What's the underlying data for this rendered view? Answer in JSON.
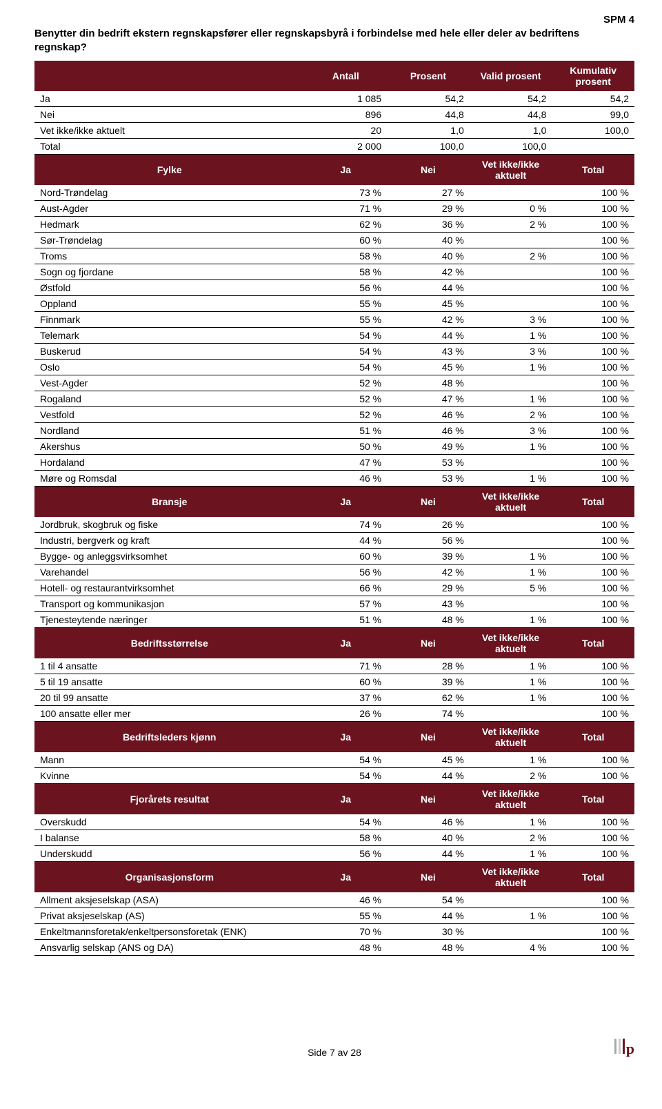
{
  "spm": "SPM 4",
  "question": "Benytter din bedrift ekstern regnskapsfører eller regnskapsbyrå i forbindelse med hele eller deler av bedriftens regnskap?",
  "colors": {
    "header_bg": "#6b1420",
    "header_fg": "#ffffff",
    "row_border": "#000000"
  },
  "summary": {
    "headers": [
      "Antall",
      "Prosent",
      "Valid prosent",
      "Kumulativ prosent"
    ],
    "rows": [
      {
        "label": "Ja",
        "cells": [
          "1 085",
          "54,2",
          "54,2",
          "54,2"
        ]
      },
      {
        "label": "Nei",
        "cells": [
          "896",
          "44,8",
          "44,8",
          "99,0"
        ]
      },
      {
        "label": "Vet ikke/ikke aktuelt",
        "cells": [
          "20",
          "1,0",
          "1,0",
          "100,0"
        ]
      },
      {
        "label": "Total",
        "cells": [
          "2 000",
          "100,0",
          "100,0",
          ""
        ]
      }
    ]
  },
  "subheaders": [
    "Ja",
    "Nei",
    "Vet ikke/ikke aktuelt",
    "Total"
  ],
  "sections": [
    {
      "title": "Fylke",
      "rows": [
        {
          "label": "Nord-Trøndelag",
          "cells": [
            "73 %",
            "27 %",
            "",
            "100 %"
          ]
        },
        {
          "label": "Aust-Agder",
          "cells": [
            "71 %",
            "29 %",
            "0 %",
            "100 %"
          ]
        },
        {
          "label": "Hedmark",
          "cells": [
            "62 %",
            "36 %",
            "2 %",
            "100 %"
          ]
        },
        {
          "label": "Sør-Trøndelag",
          "cells": [
            "60 %",
            "40 %",
            "",
            "100 %"
          ]
        },
        {
          "label": "Troms",
          "cells": [
            "58 %",
            "40 %",
            "2 %",
            "100 %"
          ]
        },
        {
          "label": "Sogn og fjordane",
          "cells": [
            "58 %",
            "42 %",
            "",
            "100 %"
          ]
        },
        {
          "label": "Østfold",
          "cells": [
            "56 %",
            "44 %",
            "",
            "100 %"
          ]
        },
        {
          "label": "Oppland",
          "cells": [
            "55 %",
            "45 %",
            "",
            "100 %"
          ]
        },
        {
          "label": "Finnmark",
          "cells": [
            "55 %",
            "42 %",
            "3 %",
            "100 %"
          ]
        },
        {
          "label": "Telemark",
          "cells": [
            "54 %",
            "44 %",
            "1 %",
            "100 %"
          ]
        },
        {
          "label": "Buskerud",
          "cells": [
            "54 %",
            "43 %",
            "3 %",
            "100 %"
          ]
        },
        {
          "label": "Oslo",
          "cells": [
            "54 %",
            "45 %",
            "1 %",
            "100 %"
          ]
        },
        {
          "label": "Vest-Agder",
          "cells": [
            "52 %",
            "48 %",
            "",
            "100 %"
          ]
        },
        {
          "label": "Rogaland",
          "cells": [
            "52 %",
            "47 %",
            "1 %",
            "100 %"
          ]
        },
        {
          "label": "Vestfold",
          "cells": [
            "52 %",
            "46 %",
            "2 %",
            "100 %"
          ]
        },
        {
          "label": "Nordland",
          "cells": [
            "51 %",
            "46 %",
            "3 %",
            "100 %"
          ]
        },
        {
          "label": "Akershus",
          "cells": [
            "50 %",
            "49 %",
            "1 %",
            "100 %"
          ]
        },
        {
          "label": "Hordaland",
          "cells": [
            "47 %",
            "53 %",
            "",
            "100 %"
          ]
        },
        {
          "label": "Møre og Romsdal",
          "cells": [
            "46 %",
            "53 %",
            "1 %",
            "100 %"
          ]
        }
      ]
    },
    {
      "title": "Bransje",
      "rows": [
        {
          "label": "Jordbruk, skogbruk og fiske",
          "cells": [
            "74 %",
            "26 %",
            "",
            "100 %"
          ]
        },
        {
          "label": "Industri, bergverk og kraft",
          "cells": [
            "44 %",
            "56 %",
            "",
            "100 %"
          ]
        },
        {
          "label": "Bygge- og anleggsvirksomhet",
          "cells": [
            "60 %",
            "39 %",
            "1 %",
            "100 %"
          ]
        },
        {
          "label": "Varehandel",
          "cells": [
            "56 %",
            "42 %",
            "1 %",
            "100 %"
          ]
        },
        {
          "label": "Hotell- og restaurantvirksomhet",
          "cells": [
            "66 %",
            "29 %",
            "5 %",
            "100 %"
          ]
        },
        {
          "label": "Transport og kommunikasjon",
          "cells": [
            "57 %",
            "43 %",
            "",
            "100 %"
          ]
        },
        {
          "label": "Tjenesteytende næringer",
          "cells": [
            "51 %",
            "48 %",
            "1 %",
            "100 %"
          ]
        }
      ]
    },
    {
      "title": "Bedriftsstørrelse",
      "rows": [
        {
          "label": "1 til 4 ansatte",
          "cells": [
            "71 %",
            "28 %",
            "1 %",
            "100 %"
          ]
        },
        {
          "label": "5 til 19 ansatte",
          "cells": [
            "60 %",
            "39 %",
            "1 %",
            "100 %"
          ]
        },
        {
          "label": "20 til 99 ansatte",
          "cells": [
            "37 %",
            "62 %",
            "1 %",
            "100 %"
          ]
        },
        {
          "label": "100 ansatte eller mer",
          "cells": [
            "26 %",
            "74 %",
            "",
            "100 %"
          ]
        }
      ]
    },
    {
      "title": "Bedriftsleders kjønn",
      "rows": [
        {
          "label": "Mann",
          "cells": [
            "54 %",
            "45 %",
            "1 %",
            "100 %"
          ]
        },
        {
          "label": "Kvinne",
          "cells": [
            "54 %",
            "44 %",
            "2 %",
            "100 %"
          ]
        }
      ]
    },
    {
      "title": "Fjorårets resultat",
      "rows": [
        {
          "label": "Overskudd",
          "cells": [
            "54 %",
            "46 %",
            "1 %",
            "100 %"
          ]
        },
        {
          "label": "I balanse",
          "cells": [
            "58 %",
            "40 %",
            "2 %",
            "100 %"
          ]
        },
        {
          "label": "Underskudd",
          "cells": [
            "56 %",
            "44 %",
            "1 %",
            "100 %"
          ]
        }
      ]
    },
    {
      "title": "Organisasjonsform",
      "rows": [
        {
          "label": "Allment aksjeselskap (ASA)",
          "cells": [
            "46 %",
            "54 %",
            "",
            "100 %"
          ]
        },
        {
          "label": "Privat aksjeselskap (AS)",
          "cells": [
            "55 %",
            "44 %",
            "1 %",
            "100 %"
          ]
        },
        {
          "label": "Enkeltmannsforetak/enkeltpersonsforetak (ENK)",
          "cells": [
            "70 %",
            "30 %",
            "",
            "100 %"
          ]
        },
        {
          "label": "Ansvarlig selskap (ANS og DA)",
          "cells": [
            "48 %",
            "48 %",
            "4 %",
            "100 %"
          ]
        }
      ]
    }
  ],
  "footer": {
    "page": "Side 7 av 28"
  },
  "logo_colors": [
    "#a8a9ad",
    "#ccccce",
    "#6b1420"
  ]
}
